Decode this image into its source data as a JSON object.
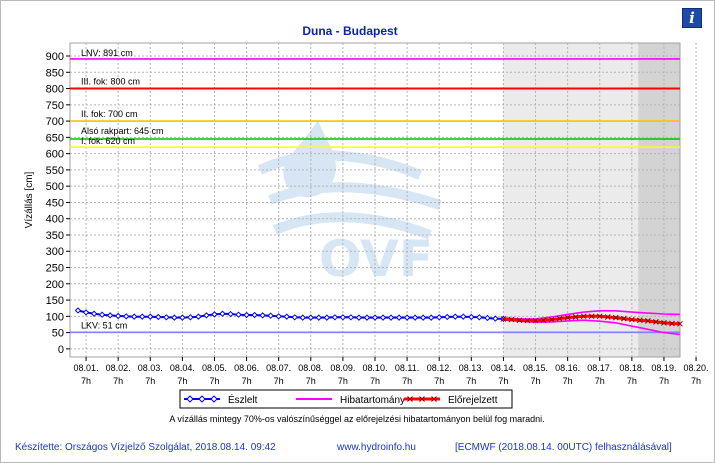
{
  "chart_data": {
    "type": "line",
    "title": "Duna - Budapest",
    "ylabel": "Vízállás [cm]",
    "ylim": [
      -25,
      940
    ],
    "yticks": [
      0,
      50,
      100,
      150,
      200,
      250,
      300,
      350,
      400,
      450,
      500,
      550,
      600,
      650,
      700,
      750,
      800,
      850,
      900
    ],
    "x_range_days": [
      0.5,
      19.5
    ],
    "x_ticks": [
      {
        "date": "08.01.",
        "time": "7h"
      },
      {
        "date": "08.02.",
        "time": "7h"
      },
      {
        "date": "08.03.",
        "time": "7h"
      },
      {
        "date": "08.04.",
        "time": "7h"
      },
      {
        "date": "08.05.",
        "time": "7h"
      },
      {
        "date": "08.06.",
        "time": "7h"
      },
      {
        "date": "08.07.",
        "time": "7h"
      },
      {
        "date": "08.08.",
        "time": "7h"
      },
      {
        "date": "08.09.",
        "time": "7h"
      },
      {
        "date": "08.10.",
        "time": "7h"
      },
      {
        "date": "08.11.",
        "time": "7h"
      },
      {
        "date": "08.12.",
        "time": "7h"
      },
      {
        "date": "08.13.",
        "time": "7h"
      },
      {
        "date": "08.14.",
        "time": "7h"
      },
      {
        "date": "08.15.",
        "time": "7h"
      },
      {
        "date": "08.16.",
        "time": "7h"
      },
      {
        "date": "08.17.",
        "time": "7h"
      },
      {
        "date": "08.18.",
        "time": "7h"
      },
      {
        "date": "08.19.",
        "time": "7h"
      },
      {
        "date": "08.20.",
        "time": "7h"
      }
    ],
    "grid": true,
    "legend_position": "bottom",
    "reference_levels": [
      {
        "label": "LNV: 891 cm",
        "value": 891,
        "color": "#ff00ff"
      },
      {
        "label": "III. fok: 800 cm",
        "value": 800,
        "color": "#ff0000"
      },
      {
        "label": "II. fok: 700 cm",
        "value": 700,
        "color": "#ffc000"
      },
      {
        "label": "Alsó rakpart: 645 cm",
        "value": 645,
        "color": "#00c000"
      },
      {
        "label": "I. fok: 620 cm",
        "value": 620,
        "color": "#ffff00"
      },
      {
        "label": "LKV: 51 cm",
        "value": 51,
        "color": "#8080ff"
      }
    ],
    "forecast_start_day": 14.0,
    "forecast_late_start_day": 18.2,
    "series": [
      {
        "name": "Észlelt",
        "color": "#0000ff",
        "marker": "diamond",
        "points": [
          [
            0.75,
            118
          ],
          [
            1.0,
            112
          ],
          [
            1.25,
            108
          ],
          [
            1.5,
            105
          ],
          [
            1.75,
            103
          ],
          [
            2.0,
            101
          ],
          [
            2.25,
            100
          ],
          [
            2.5,
            99
          ],
          [
            2.75,
            99
          ],
          [
            3.0,
            99
          ],
          [
            3.25,
            98
          ],
          [
            3.5,
            97
          ],
          [
            3.75,
            96
          ],
          [
            4.0,
            96
          ],
          [
            4.25,
            97
          ],
          [
            4.5,
            99
          ],
          [
            4.75,
            103
          ],
          [
            5.0,
            106
          ],
          [
            5.25,
            108
          ],
          [
            5.5,
            107
          ],
          [
            5.75,
            105
          ],
          [
            6.0,
            104
          ],
          [
            6.25,
            104
          ],
          [
            6.5,
            103
          ],
          [
            6.75,
            102
          ],
          [
            7.0,
            100
          ],
          [
            7.25,
            99
          ],
          [
            7.5,
            97
          ],
          [
            7.75,
            96
          ],
          [
            8.0,
            96
          ],
          [
            8.25,
            96
          ],
          [
            8.5,
            96
          ],
          [
            8.75,
            97
          ],
          [
            9.0,
            97
          ],
          [
            9.25,
            97
          ],
          [
            9.5,
            96
          ],
          [
            9.75,
            96
          ],
          [
            10.0,
            96
          ],
          [
            10.25,
            96
          ],
          [
            10.5,
            96
          ],
          [
            10.75,
            96
          ],
          [
            11.0,
            96
          ],
          [
            11.25,
            96
          ],
          [
            11.5,
            96
          ],
          [
            11.75,
            96
          ],
          [
            12.0,
            97
          ],
          [
            12.25,
            98
          ],
          [
            12.5,
            99
          ],
          [
            12.75,
            99
          ],
          [
            13.0,
            98
          ],
          [
            13.25,
            97
          ],
          [
            13.5,
            95
          ],
          [
            13.75,
            93
          ],
          [
            14.0,
            92
          ]
        ]
      },
      {
        "name": "Előrejelzett",
        "color": "#ff0000",
        "marker": "x",
        "points": [
          [
            14.0,
            92
          ],
          [
            14.25,
            90
          ],
          [
            14.5,
            88
          ],
          [
            14.75,
            87
          ],
          [
            15.0,
            87
          ],
          [
            15.25,
            88
          ],
          [
            15.5,
            90
          ],
          [
            15.75,
            93
          ],
          [
            16.0,
            96
          ],
          [
            16.25,
            98
          ],
          [
            16.5,
            100
          ],
          [
            16.75,
            100
          ],
          [
            17.0,
            100
          ],
          [
            17.25,
            98
          ],
          [
            17.5,
            96
          ],
          [
            17.75,
            93
          ],
          [
            18.0,
            90
          ],
          [
            18.25,
            88
          ],
          [
            18.5,
            86
          ],
          [
            18.75,
            83
          ],
          [
            19.0,
            80
          ],
          [
            19.25,
            78
          ],
          [
            19.5,
            77
          ]
        ]
      },
      {
        "name": "Hibatartomány",
        "color": "#ff00ff",
        "upper": [
          [
            14.0,
            95
          ],
          [
            14.5,
            92
          ],
          [
            15.0,
            92
          ],
          [
            15.5,
            98
          ],
          [
            16.0,
            106
          ],
          [
            16.5,
            113
          ],
          [
            17.0,
            117
          ],
          [
            17.5,
            117
          ],
          [
            18.0,
            113
          ],
          [
            18.5,
            110
          ],
          [
            19.0,
            107
          ],
          [
            19.5,
            106
          ]
        ],
        "lower": [
          [
            14.0,
            89
          ],
          [
            14.5,
            85
          ],
          [
            15.0,
            82
          ],
          [
            15.5,
            83
          ],
          [
            16.0,
            86
          ],
          [
            16.5,
            88
          ],
          [
            17.0,
            85
          ],
          [
            17.5,
            80
          ],
          [
            18.0,
            70
          ],
          [
            18.5,
            60
          ],
          [
            19.0,
            50
          ],
          [
            19.5,
            44
          ]
        ]
      }
    ],
    "note": "A vízállás mintegy 70%-os valószínűséggel az előrejelzési hibatartományon belül fog maradni.",
    "watermark": "OVF"
  },
  "info_icon": "info-icon",
  "info_glyph": "i",
  "footer": {
    "author": "Készítette: Országos Vízjelző Szolgálat, 2018.08.14. 09:42",
    "website": "www.hydroinfo.hu",
    "model": "[ECMWF (2018.08.14. 00UTC) felhasználásával]"
  }
}
